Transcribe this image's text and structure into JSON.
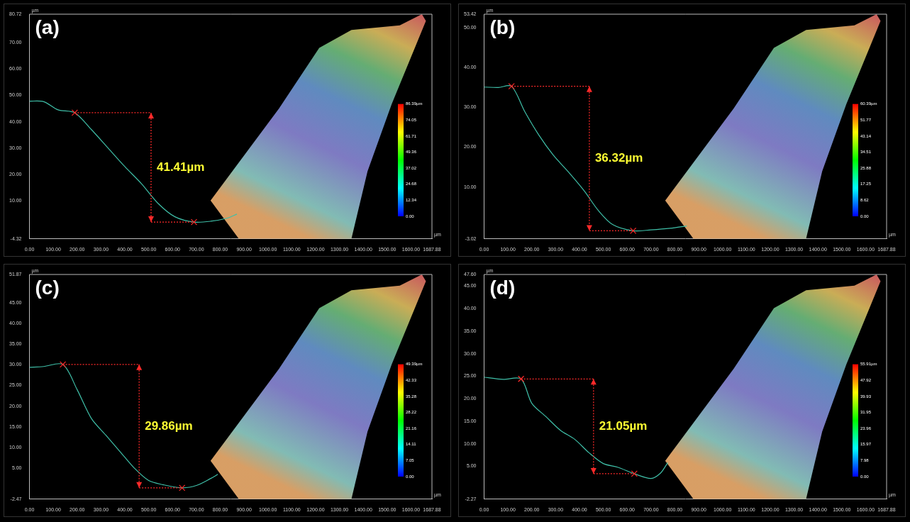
{
  "chart_data": [
    {
      "type": "line",
      "title": "(a)",
      "x_label": "µm",
      "y_label": "µm",
      "color": "#3fbfa8",
      "grid": false,
      "x": [
        0,
        60,
        120,
        190,
        260,
        330,
        400,
        470,
        540,
        610,
        690,
        760,
        830,
        870
      ],
      "values": [
        47.8,
        47.6,
        44.5,
        43.41,
        37,
        30,
        23,
        16.5,
        9,
        4,
        2.0,
        2.3,
        3.5,
        5
      ],
      "xlim": [
        0,
        1687.88
      ],
      "xticks": [
        {
          "value": 0,
          "label": "0.00"
        },
        {
          "value": 100,
          "label": "100.00"
        },
        {
          "value": 200,
          "label": "200.00"
        },
        {
          "value": 300,
          "label": "300.00"
        },
        {
          "value": 400,
          "label": "400.00"
        },
        {
          "value": 500,
          "label": "500.00"
        },
        {
          "value": 600,
          "label": "600.00"
        },
        {
          "value": 700,
          "label": "700.00"
        },
        {
          "value": 800,
          "label": "800.00"
        },
        {
          "value": 900,
          "label": "900.00"
        },
        {
          "value": 1000,
          "label": "1000.00"
        },
        {
          "value": 1100,
          "label": "1100.00"
        },
        {
          "value": 1200,
          "label": "1200.00"
        },
        {
          "value": 1300,
          "label": "1300.00"
        },
        {
          "value": 1400,
          "label": "1400.00"
        },
        {
          "value": 1500,
          "label": "1500.00"
        },
        {
          "value": 1600,
          "label": "1600.00"
        },
        1687.88
      ],
      "ylim": [
        -4.32,
        80.72
      ],
      "yticks": [
        -4.32,
        {
          "value": 10,
          "label": "10.00"
        },
        {
          "value": 20,
          "label": "20.00"
        },
        {
          "value": 30,
          "label": "30.00"
        },
        {
          "value": 40,
          "label": "40.00"
        },
        {
          "value": 50,
          "label": "50.00"
        },
        {
          "value": 60,
          "label": "60.00"
        },
        {
          "value": 70,
          "label": "70.00"
        },
        80.72
      ],
      "annotation": {
        "text": "41.41µm",
        "x1": 190,
        "y1": 43.41,
        "x2": 690,
        "y2": 2.0
      },
      "colorbar": {
        "range": [
          0,
          86.39
        ],
        "ticks": [
          {
            "value": 0,
            "label": "0.00"
          },
          12.34,
          24.68,
          37.02,
          49.36,
          61.71,
          74.05,
          {
            "value": 86.39,
            "label": "86.39µm"
          }
        ]
      }
    },
    {
      "type": "line",
      "title": "(b)",
      "x_label": "µm",
      "y_label": "µm",
      "color": "#3fbfa8",
      "grid": false,
      "x": [
        0,
        60,
        115,
        170,
        230,
        290,
        350,
        420,
        480,
        540,
        625,
        700,
        780,
        850
      ],
      "values": [
        35.1,
        35.0,
        35.3,
        29,
        23,
        18,
        14,
        9,
        4,
        0.5,
        -1.02,
        -0.8,
        -0.4,
        0.2
      ],
      "xlim": [
        0,
        1687.88
      ],
      "xticks": [
        {
          "value": 0,
          "label": "0.00"
        },
        {
          "value": 100,
          "label": "100.00"
        },
        {
          "value": 200,
          "label": "200.00"
        },
        {
          "value": 300,
          "label": "300.00"
        },
        {
          "value": 400,
          "label": "400.00"
        },
        {
          "value": 500,
          "label": "500.00"
        },
        {
          "value": 600,
          "label": "600.00"
        },
        {
          "value": 700,
          "label": "700.00"
        },
        {
          "value": 800,
          "label": "800.00"
        },
        {
          "value": 900,
          "label": "900.00"
        },
        {
          "value": 1000,
          "label": "1000.00"
        },
        {
          "value": 1100,
          "label": "1100.00"
        },
        {
          "value": 1200,
          "label": "1200.00"
        },
        {
          "value": 1300,
          "label": "1300.00"
        },
        {
          "value": 1400,
          "label": "1400.00"
        },
        {
          "value": 1500,
          "label": "1500.00"
        },
        {
          "value": 1600,
          "label": "1600.00"
        },
        1687.88
      ],
      "ylim": [
        -3.02,
        53.42
      ],
      "yticks": [
        -3.02,
        {
          "value": 10,
          "label": "10.00"
        },
        {
          "value": 20,
          "label": "20.00"
        },
        {
          "value": 30,
          "label": "30.00"
        },
        {
          "value": 40,
          "label": "40.00"
        },
        {
          "value": 50,
          "label": "50.00"
        },
        53.42
      ],
      "annotation": {
        "text": "36.32µm",
        "x1": 115,
        "y1": 35.3,
        "x2": 625,
        "y2": -1.02
      },
      "colorbar": {
        "range": [
          0,
          60.39
        ],
        "ticks": [
          {
            "value": 0,
            "label": "0.00"
          },
          8.62,
          17.25,
          25.88,
          34.51,
          43.14,
          51.77,
          {
            "value": 60.39,
            "label": "60.39µm"
          }
        ]
      }
    },
    {
      "type": "line",
      "title": "(c)",
      "x_label": "µm",
      "y_label": "µm",
      "color": "#3fbfa8",
      "grid": false,
      "x": [
        0,
        60,
        140,
        200,
        260,
        320,
        380,
        440,
        500,
        560,
        640,
        700,
        760,
        790
      ],
      "values": [
        29.4,
        29.6,
        30.1,
        24,
        17,
        13,
        9,
        5,
        2,
        1,
        0.24,
        0.8,
        2.5,
        3.5
      ],
      "xlim": [
        0,
        1687.88
      ],
      "xticks": [
        {
          "value": 0,
          "label": "0.00"
        },
        {
          "value": 100,
          "label": "100.00"
        },
        {
          "value": 200,
          "label": "200.00"
        },
        {
          "value": 300,
          "label": "300.00"
        },
        {
          "value": 400,
          "label": "400.00"
        },
        {
          "value": 500,
          "label": "500.00"
        },
        {
          "value": 600,
          "label": "600.00"
        },
        {
          "value": 700,
          "label": "700.00"
        },
        {
          "value": 800,
          "label": "800.00"
        },
        {
          "value": 900,
          "label": "900.00"
        },
        {
          "value": 1000,
          "label": "1000.00"
        },
        {
          "value": 1100,
          "label": "1100.00"
        },
        {
          "value": 1200,
          "label": "1200.00"
        },
        {
          "value": 1300,
          "label": "1300.00"
        },
        {
          "value": 1400,
          "label": "1400.00"
        },
        {
          "value": 1500,
          "label": "1500.00"
        },
        {
          "value": 1600,
          "label": "1600.00"
        },
        1687.88
      ],
      "ylim": [
        -2.47,
        51.87
      ],
      "yticks": [
        -2.47,
        {
          "value": 5,
          "label": "5.00"
        },
        {
          "value": 10,
          "label": "10.00"
        },
        {
          "value": 15,
          "label": "15.00"
        },
        {
          "value": 20,
          "label": "20.00"
        },
        {
          "value": 25,
          "label": "25.00"
        },
        {
          "value": 30,
          "label": "30.00"
        },
        {
          "value": 35,
          "label": "35.00"
        },
        {
          "value": 40,
          "label": "40.00"
        },
        {
          "value": 45,
          "label": "45.00"
        },
        51.87
      ],
      "annotation": {
        "text": "29.86µm",
        "x1": 140,
        "y1": 30.1,
        "x2": 640,
        "y2": 0.24
      },
      "colorbar": {
        "range": [
          0,
          49.39
        ],
        "ticks": [
          {
            "value": 0,
            "label": "0.00"
          },
          7.05,
          14.11,
          21.16,
          28.22,
          35.28,
          42.33,
          {
            "value": 49.39,
            "label": "49.39µm"
          }
        ]
      }
    },
    {
      "type": "line",
      "title": "(d)",
      "x_label": "µm",
      "y_label": "µm",
      "color": "#3fbfa8",
      "grid": false,
      "x": [
        0,
        80,
        155,
        200,
        260,
        320,
        380,
        440,
        500,
        560,
        630,
        700,
        740,
        770
      ],
      "values": [
        24.8,
        24.3,
        24.4,
        19,
        16,
        13,
        11,
        8,
        5.6,
        4.8,
        3.35,
        2.3,
        3.5,
        5.8
      ],
      "xlim": [
        0,
        1687.88
      ],
      "xticks": [
        {
          "value": 0,
          "label": "0.00"
        },
        {
          "value": 100,
          "label": "100.00"
        },
        {
          "value": 200,
          "label": "200.00"
        },
        {
          "value": 300,
          "label": "300.00"
        },
        {
          "value": 400,
          "label": "400.00"
        },
        {
          "value": 500,
          "label": "500.00"
        },
        {
          "value": 600,
          "label": "600.00"
        },
        {
          "value": 700,
          "label": "700.00"
        },
        {
          "value": 800,
          "label": "800.00"
        },
        {
          "value": 900,
          "label": "900.00"
        },
        {
          "value": 1000,
          "label": "1000.00"
        },
        {
          "value": 1100,
          "label": "1100.00"
        },
        {
          "value": 1200,
          "label": "1200.00"
        },
        {
          "value": 1300,
          "label": "1300.00"
        },
        {
          "value": 1400,
          "label": "1400.00"
        },
        {
          "value": 1500,
          "label": "1500.00"
        },
        {
          "value": 1600,
          "label": "1600.00"
        },
        1687.88
      ],
      "ylim": [
        -2.27,
        47.6
      ],
      "yticks": [
        -2.27,
        {
          "value": 5,
          "label": "5.00"
        },
        {
          "value": 10,
          "label": "10.00"
        },
        {
          "value": 15,
          "label": "15.00"
        },
        {
          "value": 20,
          "label": "20.00"
        },
        {
          "value": 25,
          "label": "25.00"
        },
        {
          "value": 30,
          "label": "30.00"
        },
        {
          "value": 35,
          "label": "35.00"
        },
        {
          "value": 40,
          "label": "40.00"
        },
        {
          "value": 45,
          "label": "45.00"
        },
        {
          "value": 47.6,
          "label": "47.60"
        }
      ],
      "annotation": {
        "text": "21.05µm",
        "x1": 155,
        "y1": 24.4,
        "x2": 630,
        "y2": 3.35
      },
      "colorbar": {
        "range": [
          0,
          55.91
        ],
        "ticks": [
          {
            "value": 0,
            "label": "0.00"
          },
          7.98,
          15.97,
          23.96,
          31.95,
          39.93,
          47.92,
          {
            "value": 55.91,
            "label": "55.91µm"
          }
        ]
      }
    }
  ]
}
